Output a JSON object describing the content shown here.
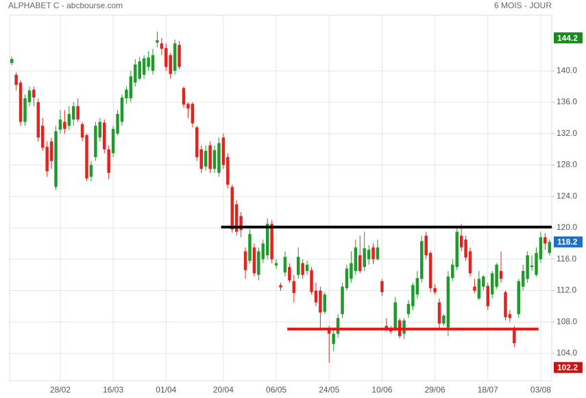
{
  "chart_data": {
    "type": "candlestick",
    "title": "ALPHABET C - abcbourse.com",
    "subtitle": "6 MOIS - JOUR",
    "categories": [
      null,
      null,
      null,
      null,
      null,
      null,
      null,
      null,
      null,
      null,
      null,
      "28/02",
      null,
      null,
      null,
      null,
      null,
      null,
      null,
      null,
      null,
      null,
      null,
      "16/03",
      null,
      null,
      null,
      null,
      null,
      null,
      null,
      null,
      null,
      null,
      null,
      "01/04",
      null,
      null,
      null,
      null,
      null,
      null,
      null,
      null,
      null,
      null,
      null,
      null,
      "20/04",
      null,
      null,
      null,
      null,
      null,
      null,
      null,
      null,
      null,
      null,
      null,
      "06/05",
      null,
      null,
      null,
      null,
      null,
      null,
      null,
      null,
      null,
      null,
      null,
      "24/05",
      null,
      null,
      null,
      null,
      null,
      null,
      null,
      null,
      null,
      null,
      null,
      "10/06",
      null,
      null,
      null,
      null,
      null,
      null,
      null,
      null,
      null,
      null,
      null,
      "29/06",
      null,
      null,
      null,
      null,
      null,
      null,
      null,
      null,
      null,
      null,
      null,
      "18/07",
      null,
      null,
      null,
      null,
      null,
      null,
      null,
      null,
      null,
      null,
      null,
      "03/08",
      null,
      null
    ],
    "open": [
      141,
      139.5,
      138.5,
      133.5,
      136,
      137.6,
      136,
      133,
      130.3,
      131,
      125.2,
      132.5,
      133.5,
      133,
      133.8,
      135.5,
      133.2,
      131.8,
      126.5,
      129,
      131.5,
      133.4,
      130,
      129.5,
      132,
      133.5,
      136.5,
      136.5,
      138.5,
      139,
      139.5,
      140.5,
      140,
      143.6,
      143.5,
      142.9,
      142,
      140,
      143.3,
      137.8,
      135.8,
      135.8,
      132.8,
      130,
      127.8,
      130.5,
      127.5,
      127,
      131.5,
      129,
      125.2,
      123,
      121.5,
      117,
      115.8,
      117.5,
      114,
      116,
      116.5,
      120.5,
      115.2,
      112.7,
      114.3,
      115,
      113.2,
      114,
      115.5,
      114.5,
      114.6,
      112,
      112,
      109.3,
      107,
      105.2,
      106.5,
      109,
      112.3,
      113.5,
      114.5,
      116.5,
      115,
      116,
      117.5,
      116,
      113.2,
      107.5,
      107.2,
      107.2,
      108.2,
      106.5,
      109,
      110,
      111.5,
      113.5,
      119,
      116.8,
      112.3,
      110.5,
      107.8,
      107.3,
      113.6,
      115,
      119,
      118.5,
      117,
      112.5,
      111,
      112.5,
      112.6,
      111.5,
      112.5,
      114.5,
      111.8,
      109,
      107.2,
      109,
      112.5,
      113.5,
      115,
      114,
      116,
      118.8,
      116.8
    ],
    "high": [
      141.8,
      139.8,
      138.8,
      137,
      138,
      138,
      136.5,
      134,
      131,
      131.5,
      133,
      135,
      135,
      135.5,
      136,
      136.5,
      133.5,
      132,
      128.5,
      133.5,
      134,
      133.8,
      130.5,
      133,
      135,
      137,
      138,
      140,
      141.5,
      141.8,
      142,
      142.5,
      142.8,
      145,
      144.2,
      143.5,
      142.3,
      144,
      143.8,
      138,
      136,
      136,
      133,
      130.5,
      130.5,
      131,
      130.5,
      131.5,
      132,
      129.5,
      125.5,
      123.5,
      122,
      117.5,
      119.8,
      118,
      117.5,
      118.5,
      121.2,
      121,
      116,
      113,
      117,
      115.5,
      114,
      117.5,
      116,
      115.8,
      115,
      113,
      112.5,
      111.8,
      107.5,
      107,
      109,
      113,
      115.3,
      117,
      118.5,
      119,
      119.5,
      117.8,
      118,
      118.5,
      113.5,
      108.5,
      107.5,
      111.2,
      108.5,
      108.5,
      110.8,
      113,
      114.5,
      119,
      119.5,
      117,
      112.8,
      111,
      109,
      114.5,
      116,
      120,
      120.5,
      119,
      117.5,
      113.5,
      114.5,
      114,
      113,
      114.5,
      115.5,
      117,
      112,
      109.5,
      107.5,
      113.5,
      115.3,
      117,
      116.5,
      117.5,
      119.5,
      119.3,
      118.5
    ],
    "low": [
      140.7,
      137.5,
      133,
      133,
      135.5,
      135.5,
      131,
      129.8,
      126.5,
      127.5,
      124.8,
      132,
      132,
      132.5,
      133,
      133.5,
      131,
      126,
      125.9,
      128.5,
      131,
      129.5,
      126.2,
      129,
      131.8,
      133,
      135.8,
      136,
      138,
      138.8,
      139,
      140,
      139.5,
      143,
      142,
      140,
      139,
      139.5,
      140.2,
      135.3,
      134,
      132.8,
      128.5,
      127,
      127.3,
      127,
      127,
      126.5,
      127.5,
      125,
      119.4,
      119,
      118.8,
      113.5,
      115.5,
      113.8,
      113.3,
      115.5,
      116,
      115.5,
      114.8,
      112,
      113.8,
      113,
      110.5,
      113.5,
      113.5,
      114,
      111.5,
      110,
      107,
      109,
      102.8,
      104.3,
      106,
      108.5,
      112,
      113,
      114,
      114.2,
      114.5,
      115.3,
      115.4,
      115.8,
      111.3,
      106.8,
      106.5,
      106.8,
      105.9,
      105.8,
      108.5,
      109.5,
      111,
      113,
      116,
      111.8,
      111.5,
      107,
      107.5,
      106.2,
      113.2,
      114.6,
      117,
      115.8,
      113.8,
      111.7,
      110.8,
      112,
      109.5,
      111,
      112.2,
      113,
      108.2,
      108,
      104.8,
      108.5,
      112,
      113,
      114.5,
      113.8,
      115.5,
      117.2,
      116.5
    ],
    "close": [
      141.5,
      138.2,
      133.5,
      136.5,
      137.5,
      136.6,
      131.5,
      130.2,
      127.2,
      128.5,
      132.3,
      133.8,
      132.6,
      134.5,
      135.5,
      133.8,
      131.5,
      126.3,
      128,
      133,
      133.5,
      130,
      127,
      132.6,
      134.5,
      136.6,
      137.6,
      139.3,
      140.8,
      141.2,
      141.6,
      141.7,
      142,
      143.9,
      142.8,
      140.5,
      139.6,
      143.5,
      140.5,
      135.7,
      135.2,
      133.3,
      129,
      127.5,
      129.8,
      127.5,
      129.9,
      130.8,
      128,
      125.5,
      119.8,
      119.5,
      119.7,
      114.6,
      119.2,
      114.2,
      117,
      118,
      120.5,
      116,
      115.5,
      112.4,
      116.3,
      113.3,
      111.7,
      116.3,
      114,
      115.3,
      111.8,
      110.5,
      109.2,
      111.5,
      106.5,
      106.5,
      108.5,
      112.5,
      114.8,
      115.5,
      117.5,
      114.5,
      117.4,
      117.2,
      116,
      117.5,
      111.8,
      107,
      106.8,
      110.5,
      106.2,
      108.2,
      110.3,
      112.7,
      113.6,
      118.3,
      116.5,
      112.3,
      111.8,
      107.8,
      108.8,
      113.8,
      115.3,
      119.5,
      117.5,
      116.2,
      114.2,
      112,
      113.5,
      113.8,
      110,
      114.2,
      115.3,
      113.5,
      108.6,
      108.5,
      105.3,
      113.2,
      114.5,
      116.5,
      115.2,
      116.8,
      118.8,
      118,
      118.2
    ],
    "up_color": "#1f9a2b",
    "down_color": "#e0241f",
    "ylim": [
      100.5,
      147.1
    ],
    "yticks": [
      {
        "value": 104,
        "label": "104.0"
      },
      {
        "value": 108,
        "label": "108.0"
      },
      {
        "value": 112,
        "label": "112.0"
      },
      {
        "value": 116,
        "label": "116.0"
      },
      {
        "value": 120,
        "label": "120.0"
      },
      {
        "value": 124,
        "label": "124.0"
      },
      {
        "value": 128,
        "label": "128.0"
      },
      {
        "value": 132,
        "label": "132.0"
      },
      {
        "value": 136,
        "label": "136.0"
      },
      {
        "value": 140,
        "label": "140.0"
      }
    ],
    "grid": true,
    "hlines": [
      {
        "value": 120.1,
        "color": "#000000",
        "from": 48,
        "to": 122
      },
      {
        "value": 107.1,
        "color": "#ee1111",
        "from": 63,
        "to": 119
      }
    ],
    "price_tags": [
      {
        "value": 144.2,
        "color": "#1a8a1a"
      },
      {
        "value": 118.2,
        "color": "#1d6fc4"
      },
      {
        "value": 102.2,
        "color": "#cc1111"
      }
    ]
  }
}
